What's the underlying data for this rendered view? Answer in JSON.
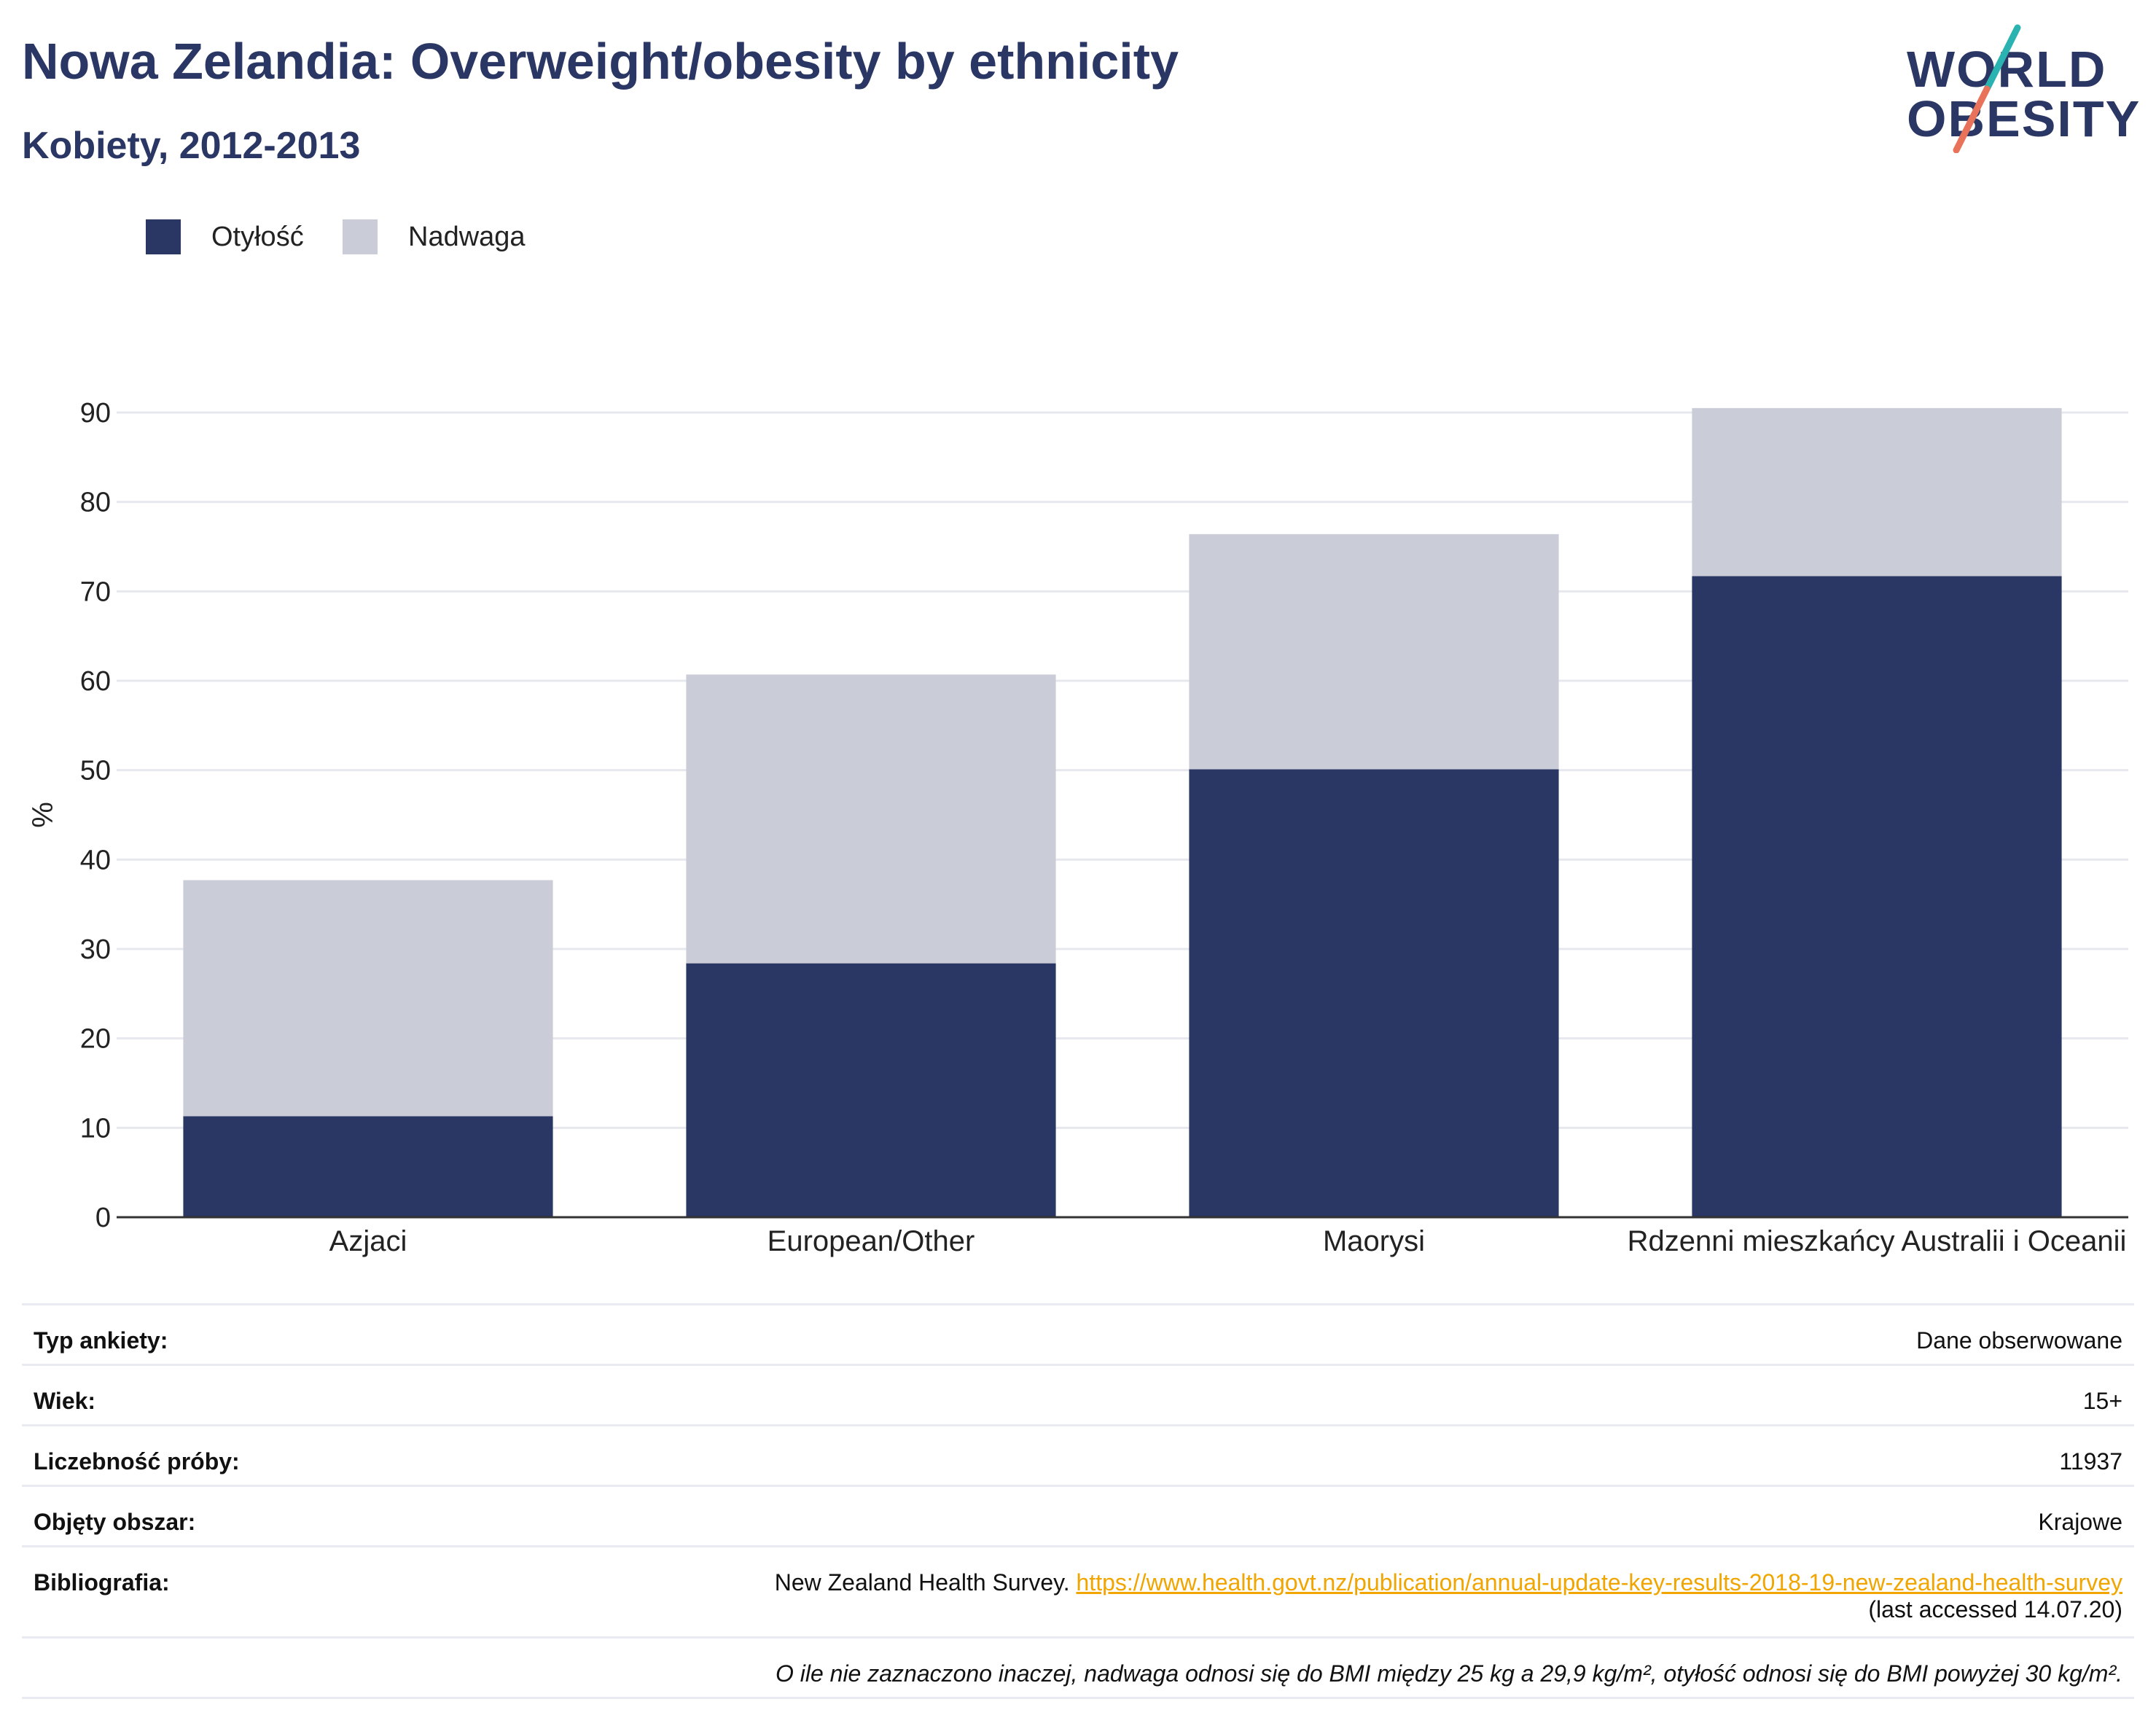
{
  "header": {
    "title": "Nowa Zelandia: Overweight/obesity by ethnicity",
    "subtitle": "Kobiety, 2012-2013"
  },
  "logo": {
    "line1": "WORLD",
    "line2": "OBESITY"
  },
  "colors": {
    "obesity": "#2a3663",
    "overweight": "#cacdd8",
    "title": "#2a3663",
    "link": "#f0a500",
    "logo_teal": "#2ab3b0",
    "logo_coral": "#e8735a"
  },
  "chart_data": {
    "type": "bar",
    "stacked": true,
    "ylabel": "%",
    "ylim": [
      0,
      90
    ],
    "yticks": [
      0,
      10,
      20,
      30,
      40,
      50,
      60,
      70,
      80,
      90
    ],
    "grid": true,
    "legend_position": "top-left",
    "categories": [
      "Azjaci",
      "European/Other",
      "Maorysi",
      "Rdzenni mieszkańcy Australii i Oceanii"
    ],
    "series": [
      {
        "name": "Otyłość",
        "values": [
          11.3,
          28.4,
          50.1,
          71.7
        ]
      },
      {
        "name": "Nadwaga",
        "values": [
          26.4,
          32.3,
          26.3,
          18.8
        ]
      }
    ]
  },
  "meta": {
    "rows": [
      {
        "key": "Typ ankiety:",
        "value": "Dane obserwowane"
      },
      {
        "key": "Wiek:",
        "value": "15+"
      },
      {
        "key": "Liczebność próby:",
        "value": "11937"
      },
      {
        "key": "Objęty obszar:",
        "value": "Krajowe"
      }
    ],
    "bibliography": {
      "key": "Bibliografia:",
      "source": "New Zealand Health Survey. ",
      "url": "https://www.health.govt.nz/publication/annual-update-key-results-2018-19-new-zealand-health-survey",
      "accessed": "(last accessed 14.07.20)"
    },
    "note": "O ile nie zaznaczono inaczej, nadwaga odnosi się do BMI między 25 kg a 29,9 kg/m², otyłość odnosi się do BMI powyżej 30 kg/m²."
  }
}
